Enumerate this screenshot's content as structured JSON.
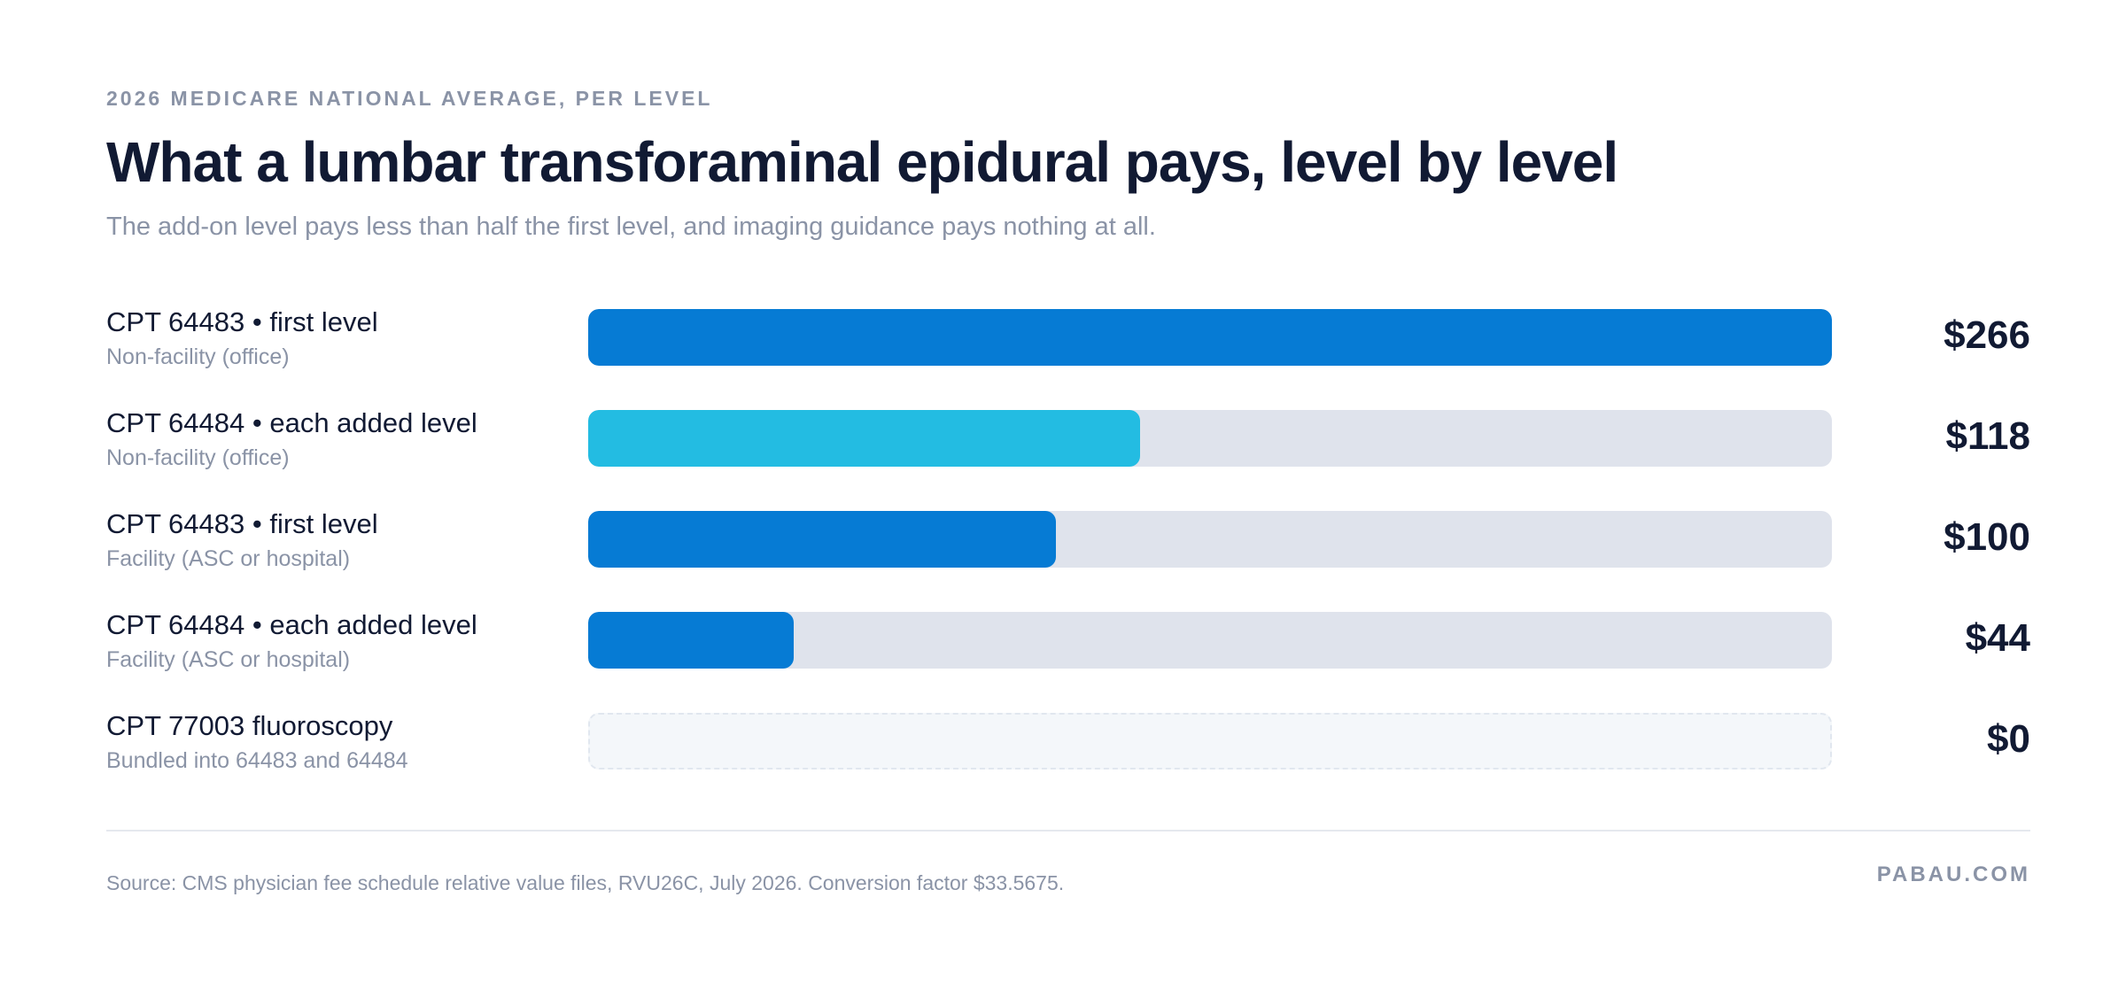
{
  "header": {
    "eyebrow": "2026 MEDICARE NATIONAL AVERAGE, PER LEVEL",
    "title": "What a lumbar transforaminal epidural pays, level by level",
    "subtitle": "The add-on level pays less than half the first level, and imaging guidance pays nothing at all."
  },
  "chart_data": {
    "type": "bar",
    "orientation": "horizontal",
    "xlim": [
      0,
      266
    ],
    "grid": false,
    "legend": "none",
    "categories": [
      "CPT 64483 • first level",
      "CPT 64484 • each added level",
      "CPT 64483 • first level",
      "CPT 64484 • each added level",
      "CPT 77003 fluoroscopy"
    ],
    "category_sublabels": [
      "Non-facility (office)",
      "Non-facility (office)",
      "Facility (ASC or hospital)",
      "Facility (ASC or hospital)",
      "Bundled into 64483 and 64484"
    ],
    "values": [
      266,
      118,
      100,
      44,
      0
    ],
    "value_labels": [
      "$266",
      "$118",
      "$100",
      "$44",
      "$0"
    ],
    "bar_colors": [
      "#067bd4",
      "#23bce2",
      "#067bd4",
      "#067bd4",
      "#f4f7fa"
    ],
    "track_color": "#dfe3ec"
  },
  "footer": {
    "source": "Source: CMS physician fee schedule relative value files, RVU26C, July 2026. Conversion factor $33.5675.",
    "brand": "PABAU.COM"
  }
}
